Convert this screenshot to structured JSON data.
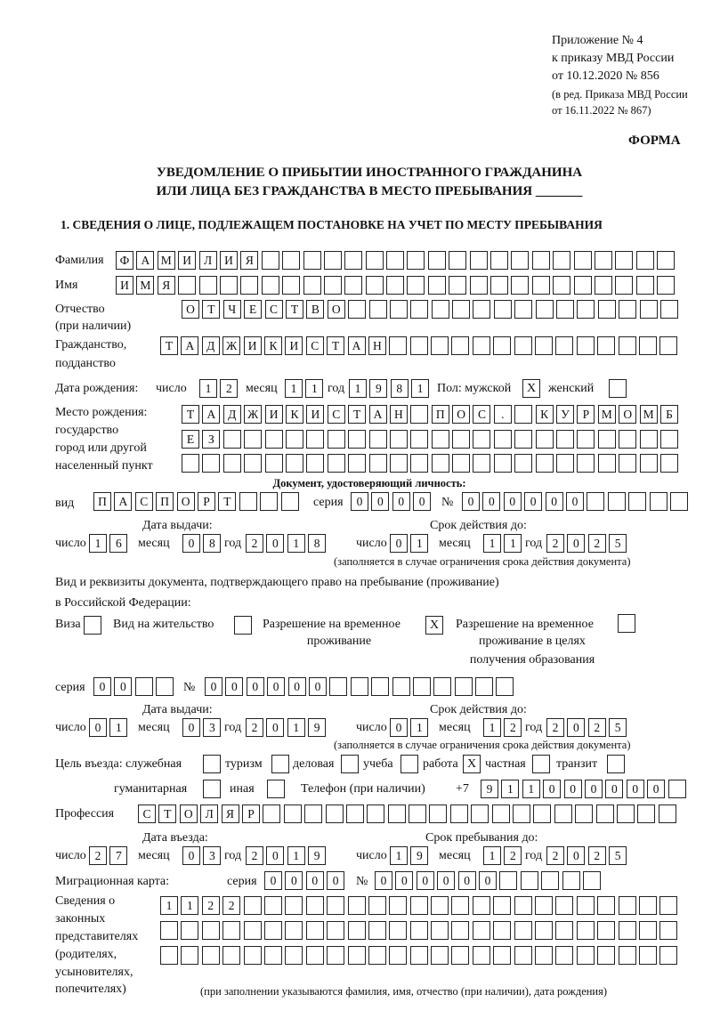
{
  "header": {
    "lines": [
      "Приложение № 4",
      "к приказу МВД России",
      "от 10.12.2020 № 856"
    ],
    "edition": [
      "(в ред. Приказа МВД России",
      "от 16.11.2022 № 867)"
    ],
    "forma": "ФОРМА"
  },
  "title": {
    "line1": "УВЕДОМЛЕНИЕ О ПРИБЫТИИ ИНОСТРАННОГО ГРАЖДАНИНА",
    "line2": "ИЛИ ЛИЦА БЕЗ ГРАЖДАНСТВА В МЕСТО ПРЕБЫВАНИЯ _______"
  },
  "section1": "1. СВЕДЕНИЯ О ЛИЦЕ, ПОДЛЕЖАЩЕМ ПОСТАНОВКЕ НА УЧЕТ ПО МЕСТУ ПРЕБЫВАНИЯ",
  "person": {
    "surname": {
      "label": "Фамилия",
      "cells": [
        "Ф",
        "А",
        "М",
        "И",
        "Л",
        "И",
        "Я",
        "",
        "",
        "",
        "",
        "",
        "",
        "",
        "",
        "",
        "",
        "",
        "",
        "",
        "",
        "",
        "",
        "",
        "",
        "",
        ""
      ]
    },
    "name": {
      "label": "Имя",
      "cells": [
        "И",
        "М",
        "Я",
        "",
        "",
        "",
        "",
        "",
        "",
        "",
        "",
        "",
        "",
        "",
        "",
        "",
        "",
        "",
        "",
        "",
        "",
        "",
        "",
        "",
        "",
        "",
        ""
      ]
    },
    "patronymic": {
      "label": "Отчество",
      "label2": "(при наличии)",
      "cells": [
        "О",
        "Т",
        "Ч",
        "Е",
        "С",
        "Т",
        "В",
        "О",
        "",
        "",
        "",
        "",
        "",
        "",
        "",
        "",
        "",
        "",
        "",
        "",
        "",
        "",
        "",
        ""
      ]
    },
    "citizenship": {
      "label": "Гражданство,",
      "label2": "подданство",
      "cells": [
        "Т",
        "А",
        "Д",
        "Ж",
        "И",
        "К",
        "И",
        "С",
        "Т",
        "А",
        "Н",
        "",
        "",
        "",
        "",
        "",
        "",
        "",
        "",
        "",
        "",
        "",
        "",
        "",
        ""
      ]
    },
    "birth": {
      "label": "Дата рождения:",
      "day_label": "число",
      "day": [
        "1",
        "2"
      ],
      "month_label": "месяц",
      "month": [
        "1",
        "1"
      ],
      "year_label": "год",
      "year": [
        "1",
        "9",
        "8",
        "1"
      ],
      "sex_label": "Пол: мужской",
      "male": "X",
      "female_label": "женский",
      "female": ""
    },
    "birthplace": {
      "labels": [
        "Место рождения:",
        "государство",
        "город или другой",
        "населенный пункт"
      ],
      "rows": [
        [
          "Т",
          "А",
          "Д",
          "Ж",
          "И",
          "К",
          "И",
          "С",
          "Т",
          "А",
          "Н",
          "",
          "П",
          "О",
          "С",
          ".",
          "",
          "К",
          "У",
          "Р",
          "М",
          "О",
          "М",
          "Б"
        ],
        [
          "Е",
          "З",
          "",
          "",
          "",
          "",
          "",
          "",
          "",
          "",
          "",
          "",
          "",
          "",
          "",
          "",
          "",
          "",
          "",
          "",
          "",
          "",
          "",
          ""
        ],
        [
          "",
          "",
          "",
          "",
          "",
          "",
          "",
          "",
          "",
          "",
          "",
          "",
          "",
          "",
          "",
          "",
          "",
          "",
          "",
          "",
          "",
          "",
          "",
          ""
        ]
      ]
    },
    "id_doc": {
      "heading": "Документ, удостоверяющий личность:",
      "kind_label": "вид",
      "kind": [
        "П",
        "А",
        "С",
        "П",
        "О",
        "Р",
        "Т",
        "",
        "",
        ""
      ],
      "series_label": "серия",
      "series": [
        "0",
        "0",
        "0",
        "0"
      ],
      "number_label": "№",
      "number": [
        "0",
        "0",
        "0",
        "0",
        "0",
        "0",
        "",
        "",
        "",
        "",
        ""
      ],
      "issue_label": "Дата выдачи:",
      "valid_label": "Срок действия до:",
      "issue": {
        "day": [
          "1",
          "6"
        ],
        "month": [
          "0",
          "8"
        ],
        "year": [
          "2",
          "0",
          "1",
          "8"
        ]
      },
      "valid": {
        "day": [
          "0",
          "1"
        ],
        "month": [
          "1",
          "1"
        ],
        "year": [
          "2",
          "0",
          "2",
          "5"
        ]
      },
      "note": "(заполняется в случае ограничения срока действия документа)"
    },
    "stay_doc": {
      "heading1": "Вид и реквизиты документа, подтверждающего право на пребывание (проживание)",
      "heading2": "в Российской Федерации:",
      "visa_label": "Виза",
      "visa": "",
      "residence_label": "Вид на жительство",
      "residence": "",
      "trp_label": "Разрешение на временное",
      "trp_label2": "проживание",
      "trp": "X",
      "trp_edu_label": "Разрешение на временное",
      "trp_edu_label2": "проживание в целях",
      "trp_edu_label3": "получения образования",
      "trp_edu": "",
      "series_label": "серия",
      "series": [
        "0",
        "0",
        "",
        ""
      ],
      "number_label": "№",
      "number": [
        "0",
        "0",
        "0",
        "0",
        "0",
        "0",
        "",
        "",
        "",
        "",
        "",
        "",
        "",
        "",
        ""
      ],
      "issue_label": "Дата выдачи:",
      "valid_label": "Срок действия до:",
      "issue": {
        "day": [
          "0",
          "1"
        ],
        "month": [
          "0",
          "3"
        ],
        "year": [
          "2",
          "0",
          "1",
          "9"
        ]
      },
      "valid": {
        "day": [
          "0",
          "1"
        ],
        "month": [
          "1",
          "2"
        ],
        "year": [
          "2",
          "0",
          "2",
          "5"
        ]
      },
      "note": "(заполняется в случае ограничения срока действия документа)"
    },
    "purpose": {
      "label": "Цель въезда: служебная",
      "official": "",
      "tourism_label": "туризм",
      "tourism": "",
      "business_label": "деловая",
      "business": "",
      "study_label": "учеба",
      "study": "",
      "work_label": "работа",
      "work": "X",
      "private_label": "частная",
      "private": "",
      "transit_label": "транзит",
      "transit": "",
      "humanitarian_label": "гуманитарная",
      "humanitarian": "",
      "other_label": "иная",
      "other": ""
    },
    "phone": {
      "label": "Телефон (при наличии)",
      "prefix": "+7",
      "cells": [
        "9",
        "1",
        "1",
        "0",
        "0",
        "0",
        "0",
        "0",
        "0",
        ""
      ]
    },
    "profession": {
      "label": "Профессия",
      "cells": [
        "С",
        "Т",
        "О",
        "Л",
        "Я",
        "Р",
        "",
        "",
        "",
        "",
        "",
        "",
        "",
        "",
        "",
        "",
        "",
        "",
        "",
        "",
        "",
        "",
        "",
        "",
        "",
        ""
      ]
    },
    "entry": {
      "entry_label": "Дата въезда:",
      "stay_label": "Срок пребывания до:",
      "entry": {
        "day": [
          "2",
          "7"
        ],
        "month": [
          "0",
          "3"
        ],
        "year": [
          "2",
          "0",
          "1",
          "9"
        ]
      },
      "stay": {
        "day": [
          "1",
          "9"
        ],
        "month": [
          "1",
          "2"
        ],
        "year": [
          "2",
          "0",
          "2",
          "5"
        ]
      }
    },
    "migration_card": {
      "label": "Миграционная карта:",
      "series_label": "серия",
      "series": [
        "0",
        "0",
        "0",
        "0"
      ],
      "number_label": "№",
      "number": [
        "0",
        "0",
        "0",
        "0",
        "0",
        "0",
        "",
        "",
        "",
        "",
        ""
      ]
    },
    "representatives": {
      "labels": [
        "Сведения о",
        "законных",
        "представителях",
        "(родителях,",
        "усыновителях,",
        "попечителях)"
      ],
      "rows": [
        [
          "1",
          "1",
          "2",
          "2",
          "",
          "",
          "",
          "",
          "",
          "",
          "",
          "",
          "",
          "",
          "",
          "",
          "",
          "",
          "",
          "",
          "",
          "",
          "",
          "",
          ""
        ],
        [
          "",
          "",
          "",
          "",
          "",
          "",
          "",
          "",
          "",
          "",
          "",
          "",
          "",
          "",
          "",
          "",
          "",
          "",
          "",
          "",
          "",
          "",
          "",
          "",
          ""
        ],
        [
          "",
          "",
          "",
          "",
          "",
          "",
          "",
          "",
          "",
          "",
          "",
          "",
          "",
          "",
          "",
          "",
          "",
          "",
          "",
          "",
          "",
          "",
          "",
          "",
          ""
        ]
      ],
      "note": "(при заполнении указываются фамилия, имя, отчество (при наличии), дата рождения)"
    }
  },
  "common": {
    "day": "число",
    "month": "месяц",
    "year": "год"
  }
}
